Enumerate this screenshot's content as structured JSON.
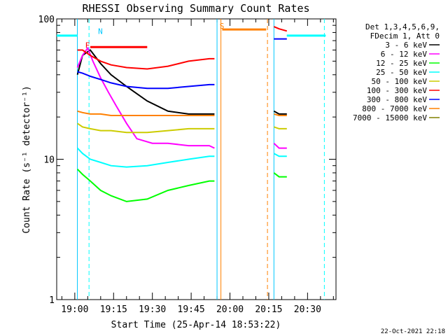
{
  "chart_data": {
    "type": "line",
    "title": "RHESSI Observing Summary Count Rates",
    "xlabel": "Start Time (25-Apr-14 18:53:22)",
    "ylabel": "Count Rate (s⁻¹ detector⁻¹)",
    "yscale": "log",
    "ylim": [
      1,
      100
    ],
    "xlim_minutes": [
      -7,
      101
    ],
    "x_ticks": [
      {
        "t": 0,
        "label": "19:00"
      },
      {
        "t": 15,
        "label": "19:15"
      },
      {
        "t": 30,
        "label": "19:30"
      },
      {
        "t": 45,
        "label": "19:45"
      },
      {
        "t": 60,
        "label": "20:00"
      },
      {
        "t": 75,
        "label": "20:15"
      },
      {
        "t": 90,
        "label": "20:30"
      }
    ],
    "y_ticks": [
      {
        "v": 1,
        "label": "1"
      },
      {
        "v": 10,
        "label": "10"
      },
      {
        "v": 100,
        "label": "100"
      }
    ],
    "legend_header": [
      "Det 1,3,4,5,6,9,",
      "FDecim 1, Att 0"
    ],
    "legend_position": "right",
    "series": [
      {
        "name": "3 - 6 keV",
        "color": "#000000",
        "segments": [
          {
            "x": [
              1,
              3,
              6,
              10,
              14,
              20,
              28,
              36,
              44,
              52,
              54
            ],
            "y": [
              40,
              55,
              60,
              48,
              40,
              33,
              26,
              22,
              21,
              21,
              21
            ]
          },
          {
            "x": [
              77,
              79,
              82
            ],
            "y": [
              22,
              21,
              21
            ]
          }
        ]
      },
      {
        "name": "6 - 12 keV",
        "color": "#ff00ff",
        "segments": [
          {
            "x": [
              1,
              3,
              5,
              7,
              10,
              13,
              16,
              20,
              24,
              30,
              36,
              44,
              52,
              54
            ],
            "y": [
              45,
              55,
              62,
              50,
              38,
              30,
              24,
              18,
              14,
              13,
              13,
              12.5,
              12.5,
              12
            ]
          },
          {
            "x": [
              77,
              79,
              82
            ],
            "y": [
              13,
              12,
              12
            ]
          }
        ]
      },
      {
        "name": "12 - 25 keV",
        "color": "#00ff00",
        "segments": [
          {
            "x": [
              1,
              3,
              6,
              10,
              14,
              20,
              28,
              36,
              44,
              52,
              54
            ],
            "y": [
              8.5,
              7.8,
              7,
              6,
              5.5,
              5,
              5.2,
              6,
              6.5,
              7,
              7
            ]
          },
          {
            "x": [
              77,
              79,
              82
            ],
            "y": [
              8,
              7.5,
              7.5
            ]
          }
        ]
      },
      {
        "name": "25 - 50 keV",
        "color": "#00ffff",
        "segments": [
          {
            "x": [
              1,
              3,
              6,
              10,
              14,
              20,
              28,
              36,
              44,
              52,
              54
            ],
            "y": [
              12,
              11,
              10,
              9.5,
              9,
              8.8,
              9,
              9.5,
              10,
              10.5,
              10.5
            ]
          },
          {
            "x": [
              77,
              79,
              82
            ],
            "y": [
              11,
              10.5,
              10.5
            ]
          },
          {
            "x": [
              -7,
              1
            ],
            "y": [
              76,
              76
            ]
          },
          {
            "x": [
              82,
              97
            ],
            "y": [
              76,
              76
            ]
          }
        ]
      },
      {
        "name": "50 - 100 keV",
        "color": "#cccc00",
        "segments": [
          {
            "x": [
              1,
              3,
              6,
              10,
              14,
              20,
              28,
              36,
              44,
              52,
              54
            ],
            "y": [
              18,
              17,
              16.5,
              16,
              16,
              15.5,
              15.5,
              16,
              16.5,
              16.5,
              16.5
            ]
          },
          {
            "x": [
              77,
              79,
              82
            ],
            "y": [
              17,
              16.5,
              16.5
            ]
          }
        ]
      },
      {
        "name": "100 - 300 keV",
        "color": "#ff0000",
        "segments": [
          {
            "x": [
              1,
              3,
              6,
              10,
              14,
              20,
              28,
              36,
              44,
              52,
              54
            ],
            "y": [
              60,
              60,
              55,
              50,
              47,
              45,
              44,
              46,
              50,
              52,
              52
            ]
          },
          {
            "x": [
              77,
              79,
              82
            ],
            "y": [
              88,
              85,
              82
            ]
          }
        ]
      },
      {
        "name": "300 - 800 keV",
        "color": "#0000ff",
        "segments": [
          {
            "x": [
              1,
              3,
              6,
              10,
              14,
              20,
              28,
              36,
              44,
              52,
              54
            ],
            "y": [
              42,
              41,
              39,
              37,
              35,
              33,
              32,
              32,
              33,
              34,
              34
            ]
          },
          {
            "x": [
              77,
              79,
              82
            ],
            "y": [
              72,
              72,
              72
            ]
          }
        ]
      },
      {
        "name": "800 - 7000 keV",
        "color": "#ff8000",
        "segments": [
          {
            "x": [
              1,
              3,
              6,
              10,
              14,
              20,
              28,
              36,
              44,
              52,
              54
            ],
            "y": [
              22,
              21.5,
              21,
              21,
              20.5,
              20.5,
              20.5,
              20.5,
              20.5,
              20.5,
              20.5
            ]
          },
          {
            "x": [
              77,
              79,
              82
            ],
            "y": [
              21,
              20.5,
              20.5
            ]
          }
        ]
      },
      {
        "name": "7000 - 15000 keV",
        "color": "#808000",
        "segments": []
      }
    ],
    "annotations": [
      {
        "text": "N",
        "x": 9,
        "y": 78,
        "color": "#00c8ff"
      },
      {
        "text": "F",
        "x": 4,
        "y": 62,
        "color": "#ff0000"
      },
      {
        "text": "S",
        "x": 56,
        "y": 85,
        "color": "#ff8000"
      }
    ],
    "flag_bars": [
      {
        "name": "flare-bar",
        "x": [
          6,
          28
        ],
        "y": 63,
        "color": "#ff0000"
      },
      {
        "name": "saa-bar",
        "x": [
          57,
          74
        ],
        "y": 84,
        "color": "#ff8000"
      },
      {
        "name": "night-bar-left",
        "x": [
          -7,
          1
        ],
        "y": 76,
        "color": "#00ffff"
      },
      {
        "name": "night-bar-right",
        "x": [
          82,
          97
        ],
        "y": 76,
        "color": "#00ffff"
      }
    ],
    "vlines": [
      {
        "x": 1,
        "color": "#00c8ff",
        "dash": false
      },
      {
        "x": 5.5,
        "color": "#00ffff",
        "dash": true
      },
      {
        "x": 55,
        "color": "#00c8ff",
        "dash": false
      },
      {
        "x": 56.5,
        "color": "#ff8000",
        "dash": false
      },
      {
        "x": 74.5,
        "color": "#ff8000",
        "dash": true
      },
      {
        "x": 77,
        "color": "#00c8ff",
        "dash": false
      },
      {
        "x": 96.5,
        "color": "#00ffff",
        "dash": true
      }
    ],
    "timestamp": "22-Oct-2021 22:18"
  }
}
